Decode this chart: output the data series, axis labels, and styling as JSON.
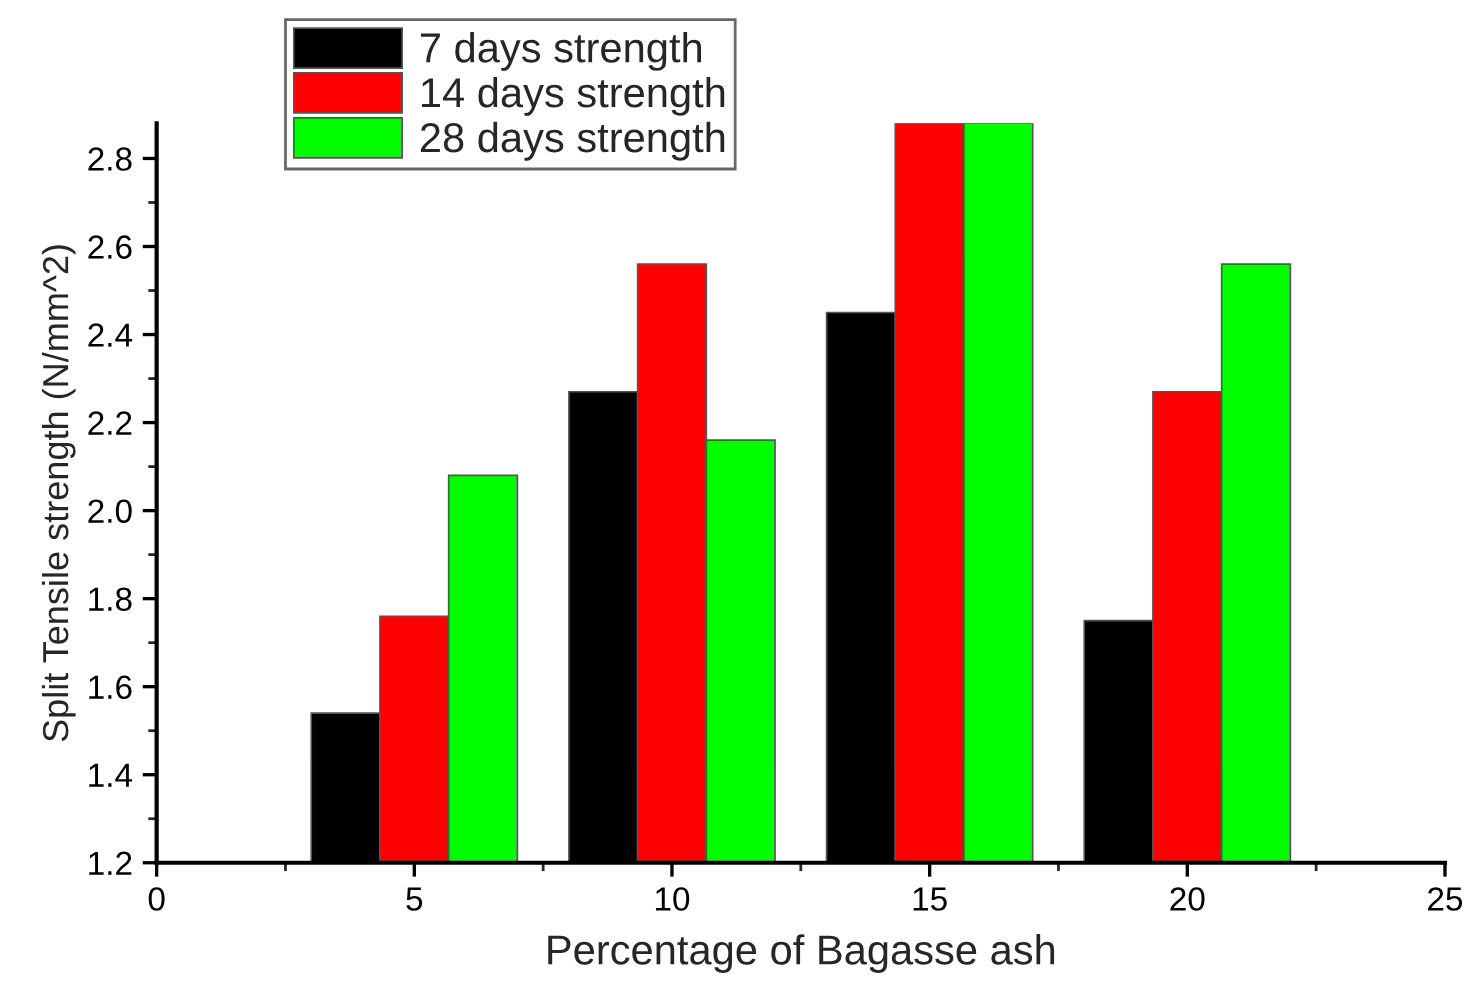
{
  "chart_data": {
    "type": "bar",
    "x": [
      5,
      10,
      15,
      20
    ],
    "xlabel": "Percentage of Bagasse ash",
    "ylabel": "Split Tensile strength (N/mm^2)",
    "series": [
      {
        "name": "7 days strength",
        "color": "#000000",
        "values": [
          1.54,
          2.27,
          2.45,
          1.75
        ]
      },
      {
        "name": "14 days strength",
        "color": "#ff0000",
        "values": [
          1.76,
          2.56,
          2.88,
          2.27
        ]
      },
      {
        "name": "28 days strength",
        "color": "#00ff00",
        "values": [
          2.08,
          2.16,
          2.88,
          2.56
        ]
      }
    ],
    "xlim": [
      0,
      25
    ],
    "xticks": [
      0,
      5,
      10,
      15,
      20,
      25
    ],
    "ylim": [
      1.2,
      2.88
    ],
    "yticks": [
      1.2,
      1.4,
      1.6,
      1.8,
      {
        "value": 2,
        "label": "2.0"
      },
      2.2,
      2.4,
      2.6,
      2.8
    ],
    "grid": false,
    "legend": "top left"
  }
}
